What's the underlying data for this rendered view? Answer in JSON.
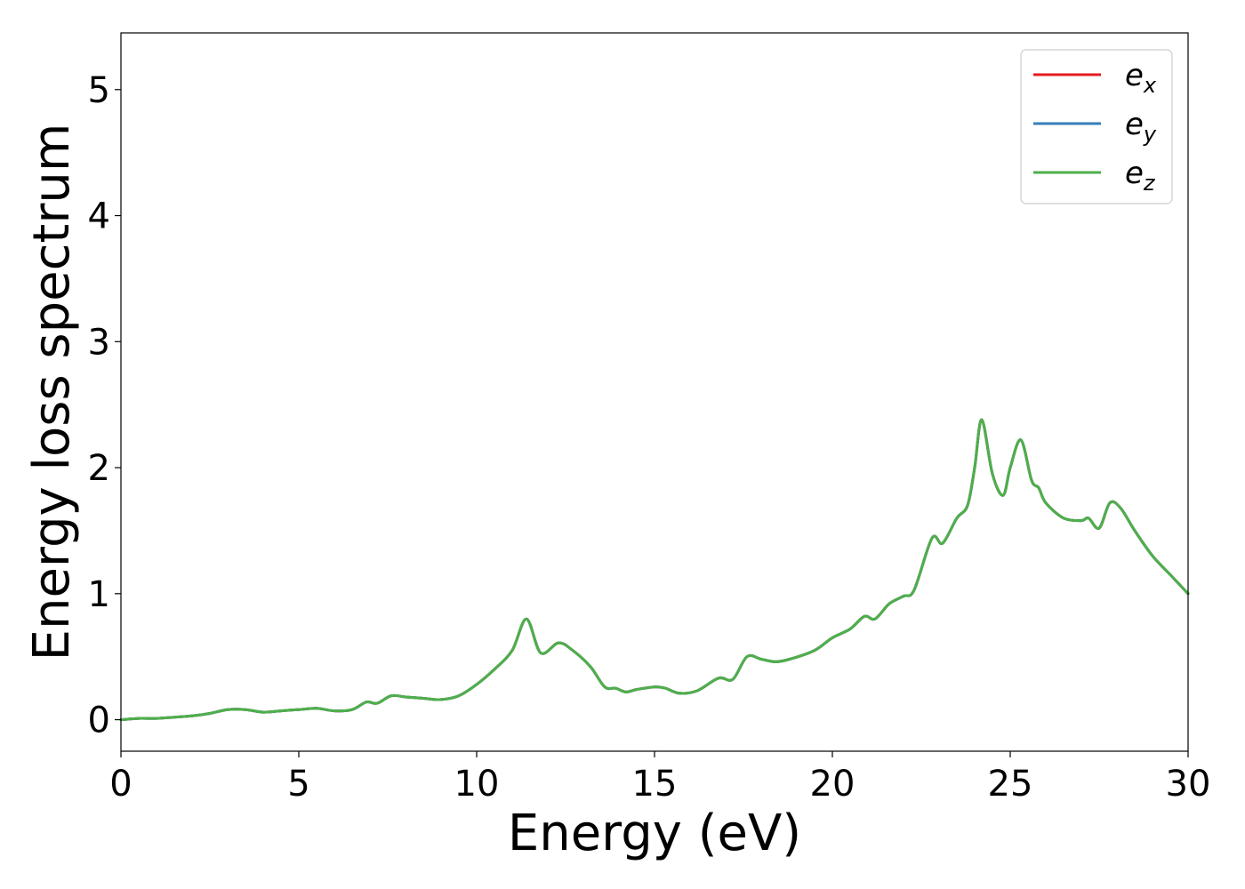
{
  "chart_data": {
    "type": "line",
    "xlabel": "Energy (eV)",
    "ylabel": "Energy loss spectrum",
    "xlim": [
      0,
      30
    ],
    "ylim": [
      -0.25,
      5.45
    ],
    "xticks": [
      0,
      5,
      10,
      15,
      20,
      25,
      30
    ],
    "yticks": [
      0,
      1,
      2,
      3,
      4,
      5
    ],
    "xtick_labels": [
      "0",
      "5",
      "10",
      "15",
      "20",
      "25",
      "30"
    ],
    "ytick_labels": [
      "0",
      "1",
      "2",
      "3",
      "4",
      "5"
    ],
    "grid": false,
    "legend_position": "top-right",
    "x": [
      0,
      0.5,
      1,
      1.5,
      2,
      2.5,
      3,
      3.5,
      4,
      4.5,
      5,
      5.5,
      6,
      6.5,
      6.9,
      7.2,
      7.6,
      8,
      8.5,
      9,
      9.5,
      10,
      10.5,
      11,
      11.4,
      11.8,
      12.3,
      12.7,
      13.2,
      13.6,
      13.9,
      14.2,
      14.5,
      15,
      15.3,
      15.7,
      16.2,
      16.8,
      17.2,
      17.6,
      18,
      18.4,
      18.8,
      19.5,
      20,
      20.5,
      20.9,
      21.2,
      21.6,
      22,
      22.3,
      22.8,
      23.1,
      23.5,
      23.8,
      24.0,
      24.2,
      24.5,
      24.8,
      25.0,
      25.3,
      25.6,
      25.8,
      26,
      26.5,
      27,
      27.2,
      27.5,
      27.8,
      28.1,
      28.5,
      29,
      29.5,
      30
    ],
    "series": [
      {
        "name": "e_x",
        "color": "#e41a1c",
        "values": [
          0.0,
          0.01,
          0.01,
          0.02,
          0.03,
          0.05,
          0.08,
          0.08,
          0.06,
          0.07,
          0.08,
          0.09,
          0.07,
          0.08,
          0.14,
          0.13,
          0.19,
          0.18,
          0.17,
          0.16,
          0.19,
          0.28,
          0.4,
          0.55,
          0.8,
          0.53,
          0.61,
          0.55,
          0.42,
          0.26,
          0.25,
          0.22,
          0.24,
          0.26,
          0.25,
          0.21,
          0.23,
          0.33,
          0.32,
          0.5,
          0.48,
          0.46,
          0.48,
          0.55,
          0.65,
          0.72,
          0.82,
          0.8,
          0.92,
          0.98,
          1.03,
          1.44,
          1.4,
          1.6,
          1.7,
          2.0,
          2.38,
          1.95,
          1.78,
          2.0,
          2.22,
          1.9,
          1.84,
          1.72,
          1.6,
          1.58,
          1.6,
          1.52,
          1.72,
          1.68,
          1.5,
          1.3,
          1.15,
          1.0
        ]
      },
      {
        "name": "e_y",
        "color": "#377eb8",
        "values": [
          0.0,
          0.01,
          0.01,
          0.02,
          0.03,
          0.05,
          0.08,
          0.08,
          0.06,
          0.07,
          0.08,
          0.09,
          0.07,
          0.08,
          0.14,
          0.13,
          0.19,
          0.18,
          0.17,
          0.16,
          0.19,
          0.28,
          0.4,
          0.55,
          0.8,
          0.53,
          0.61,
          0.55,
          0.42,
          0.26,
          0.25,
          0.22,
          0.24,
          0.26,
          0.25,
          0.21,
          0.23,
          0.33,
          0.32,
          0.5,
          0.48,
          0.46,
          0.48,
          0.55,
          0.65,
          0.72,
          0.82,
          0.8,
          0.92,
          0.98,
          1.03,
          1.44,
          1.4,
          1.6,
          1.7,
          2.0,
          2.38,
          1.95,
          1.78,
          2.0,
          2.22,
          1.9,
          1.84,
          1.72,
          1.6,
          1.58,
          1.6,
          1.52,
          1.72,
          1.68,
          1.5,
          1.3,
          1.15,
          1.0
        ]
      },
      {
        "name": "e_z",
        "color": "#4daf4a",
        "values": [
          0.0,
          0.01,
          0.01,
          0.02,
          0.03,
          0.05,
          0.08,
          0.08,
          0.06,
          0.07,
          0.08,
          0.09,
          0.07,
          0.08,
          0.14,
          0.13,
          0.19,
          0.18,
          0.17,
          0.16,
          0.19,
          0.28,
          0.4,
          0.55,
          0.8,
          0.53,
          0.61,
          0.55,
          0.42,
          0.26,
          0.25,
          0.22,
          0.24,
          0.26,
          0.25,
          0.21,
          0.23,
          0.33,
          0.32,
          0.5,
          0.48,
          0.46,
          0.48,
          0.55,
          0.65,
          0.72,
          0.82,
          0.8,
          0.92,
          0.98,
          1.03,
          1.44,
          1.4,
          1.6,
          1.7,
          2.0,
          2.38,
          1.95,
          1.78,
          2.0,
          2.22,
          1.9,
          1.84,
          1.72,
          1.6,
          1.58,
          1.6,
          1.52,
          1.72,
          1.68,
          1.5,
          1.3,
          1.15,
          1.0
        ]
      }
    ],
    "legend": [
      {
        "base": "e",
        "sub": "x"
      },
      {
        "base": "e",
        "sub": "y"
      },
      {
        "base": "e",
        "sub": "z"
      }
    ]
  }
}
